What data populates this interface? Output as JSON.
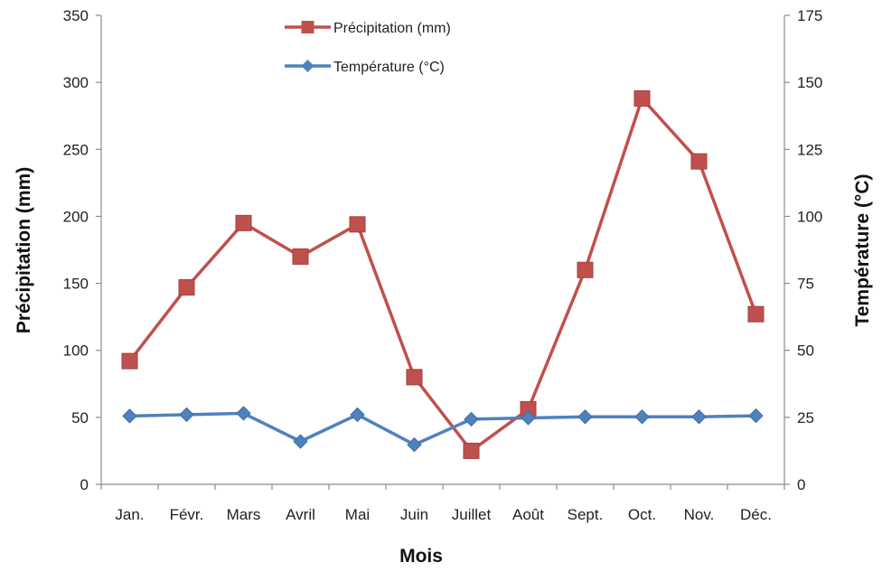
{
  "chart_data": {
    "type": "line",
    "xlabel": "Mois",
    "ylabel": "Précipitation (mm)",
    "y2label": "Température (°C)",
    "categories": [
      "Jan.",
      "Févr.",
      "Mars",
      "Avril",
      "Mai",
      "Juin",
      "Juillet",
      "Août",
      "Sept.",
      "Oct.",
      "Nov.",
      "Déc."
    ],
    "ylim": [
      0,
      350
    ],
    "y2lim": [
      0,
      175
    ],
    "yticks": [
      "0",
      "50",
      "100",
      "150",
      "200",
      "250",
      "300",
      "350"
    ],
    "y2ticks": [
      "0",
      "25",
      "50",
      "75",
      "100",
      "125",
      "150",
      "175"
    ],
    "grid": false,
    "legend_position": "top-center",
    "series": [
      {
        "name": "Précipitation (mm)",
        "axis": "left",
        "marker": "square",
        "color": "#c0504d",
        "values": [
          92,
          147,
          195,
          170,
          194,
          80,
          25,
          56,
          160,
          288,
          241,
          127
        ]
      },
      {
        "name": "Température (°C)",
        "axis": "right",
        "marker": "diamond",
        "color": "#4f81bd",
        "values": [
          25.5,
          26,
          26.5,
          16,
          26,
          14.8,
          24.3,
          24.8,
          25.2,
          25.2,
          25.2,
          25.6
        ]
      }
    ]
  }
}
